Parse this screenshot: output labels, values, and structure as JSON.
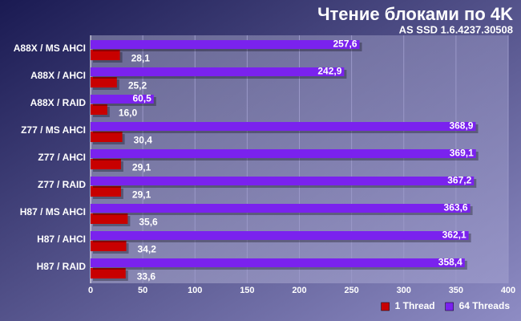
{
  "chart_data": {
    "type": "bar",
    "orientation": "horizontal",
    "title": "Чтение блоками по 4K",
    "subtitle": "AS SSD 1.6.4237.30508",
    "categories": [
      "A88X / MS AHCI",
      "A88X / AHCI",
      "A88X / RAID",
      "Z77 / MS AHCI",
      "Z77 / AHCI",
      "Z77 / RAID",
      "H87 / MS AHCI",
      "H87 / AHCI",
      "H87 / RAID"
    ],
    "series": [
      {
        "name": "1 Thread",
        "color": "#c80000",
        "values": [
          28.1,
          25.2,
          16.0,
          30.4,
          29.1,
          29.1,
          35.6,
          34.2,
          33.6
        ],
        "value_labels": [
          "28,1",
          "25,2",
          "16,0",
          "30,4",
          "29,1",
          "29,1",
          "35,6",
          "34,2",
          "33,6"
        ]
      },
      {
        "name": "64 Threads",
        "color": "#7a22ee",
        "values": [
          257.6,
          242.9,
          60.5,
          368.9,
          369.1,
          367.2,
          363.6,
          362.1,
          358.4
        ],
        "value_labels": [
          "257,6",
          "242,9",
          "60,5",
          "368,9",
          "369,1",
          "367,2",
          "363,6",
          "362,1",
          "358,4"
        ]
      }
    ],
    "xlim": [
      0,
      400
    ],
    "xticks": [
      0,
      50,
      100,
      150,
      200,
      250,
      300,
      350,
      400
    ],
    "grid": true,
    "legend": "bottom-right"
  }
}
